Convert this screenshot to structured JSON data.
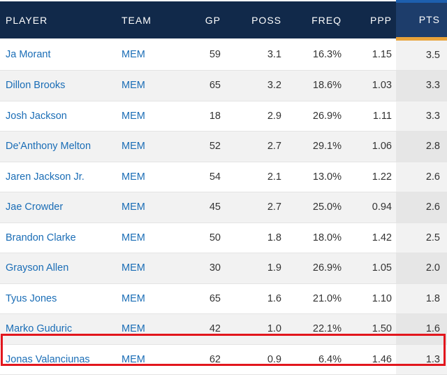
{
  "columns": {
    "player": "PLAYER",
    "team": "TEAM",
    "gp": "GP",
    "poss": "POSS",
    "freq": "FREQ",
    "ppp": "PPP",
    "pts": "PTS"
  },
  "sorted_column": "PTS",
  "colors": {
    "header_bg": "#11294a",
    "sorted_header_bg": "#1d3d6b",
    "sort_indicator": "#e8a33a",
    "link": "#1a6db6",
    "highlight_border": "#e2161d"
  },
  "rows": [
    {
      "player": "Ja Morant",
      "team": "MEM",
      "gp": "59",
      "poss": "3.1",
      "freq": "16.3%",
      "ppp": "1.15",
      "pts": "3.5"
    },
    {
      "player": "Dillon Brooks",
      "team": "MEM",
      "gp": "65",
      "poss": "3.2",
      "freq": "18.6%",
      "ppp": "1.03",
      "pts": "3.3"
    },
    {
      "player": "Josh Jackson",
      "team": "MEM",
      "gp": "18",
      "poss": "2.9",
      "freq": "26.9%",
      "ppp": "1.11",
      "pts": "3.3"
    },
    {
      "player": "De'Anthony Melton",
      "team": "MEM",
      "gp": "52",
      "poss": "2.7",
      "freq": "29.1%",
      "ppp": "1.06",
      "pts": "2.8"
    },
    {
      "player": "Jaren Jackson Jr.",
      "team": "MEM",
      "gp": "54",
      "poss": "2.1",
      "freq": "13.0%",
      "ppp": "1.22",
      "pts": "2.6"
    },
    {
      "player": "Jae Crowder",
      "team": "MEM",
      "gp": "45",
      "poss": "2.7",
      "freq": "25.0%",
      "ppp": "0.94",
      "pts": "2.6"
    },
    {
      "player": "Brandon Clarke",
      "team": "MEM",
      "gp": "50",
      "poss": "1.8",
      "freq": "18.0%",
      "ppp": "1.42",
      "pts": "2.5"
    },
    {
      "player": "Grayson Allen",
      "team": "MEM",
      "gp": "30",
      "poss": "1.9",
      "freq": "26.9%",
      "ppp": "1.05",
      "pts": "2.0"
    },
    {
      "player": "Tyus Jones",
      "team": "MEM",
      "gp": "65",
      "poss": "1.6",
      "freq": "21.0%",
      "ppp": "1.10",
      "pts": "1.8"
    },
    {
      "player": "Marko Guduric",
      "team": "MEM",
      "gp": "42",
      "poss": "1.0",
      "freq": "22.1%",
      "ppp": "1.50",
      "pts": "1.6"
    },
    {
      "player": "Jonas Valanciunas",
      "team": "MEM",
      "gp": "62",
      "poss": "0.9",
      "freq": "6.4%",
      "ppp": "1.46",
      "pts": "1.3",
      "highlighted": true
    }
  ]
}
